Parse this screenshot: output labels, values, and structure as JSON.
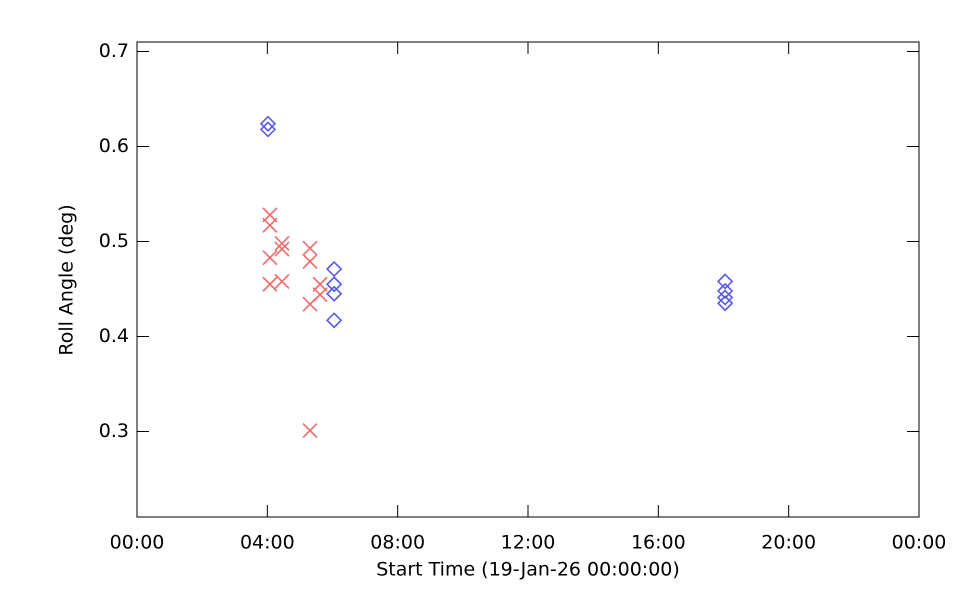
{
  "chart_data": {
    "type": "scatter",
    "x_label": "Start Time (19-Jan-26 00:00:00)",
    "y_label": "Roll Angle (deg)",
    "xlim": [
      0,
      24
    ],
    "ylim": [
      0.21,
      0.71
    ],
    "xticks": [
      {
        "value": 0,
        "label": "00:00"
      },
      {
        "value": 4,
        "label": "04:00"
      },
      {
        "value": 8,
        "label": "08:00"
      },
      {
        "value": 12,
        "label": "12:00"
      },
      {
        "value": 16,
        "label": "16:00"
      },
      {
        "value": 20,
        "label": "20:00"
      },
      {
        "value": 24,
        "label": "00:00"
      }
    ],
    "yticks": [
      0.3,
      0.4,
      0.5,
      0.6,
      0.7
    ],
    "series": [
      {
        "color": "#f06a6a",
        "marker": "x",
        "x": [
          4.08,
          4.08,
          4.08,
          4.08,
          4.45,
          4.45,
          4.45,
          5.31,
          5.31,
          5.31,
          5.31,
          5.62,
          5.62
        ],
        "values": [
          0.528,
          0.517,
          0.483,
          0.455,
          0.498,
          0.492,
          0.458,
          0.493,
          0.479,
          0.434,
          0.301,
          0.455,
          0.444
        ]
      },
      {
        "color": "#5a5ae6",
        "marker": "diamond",
        "x": [
          4.02,
          4.02,
          6.05,
          6.05,
          6.05,
          6.05,
          18.05,
          18.05,
          18.05,
          18.05
        ],
        "values": [
          0.624,
          0.618,
          0.471,
          0.455,
          0.445,
          0.417,
          0.458,
          0.448,
          0.441,
          0.435
        ]
      }
    ]
  }
}
